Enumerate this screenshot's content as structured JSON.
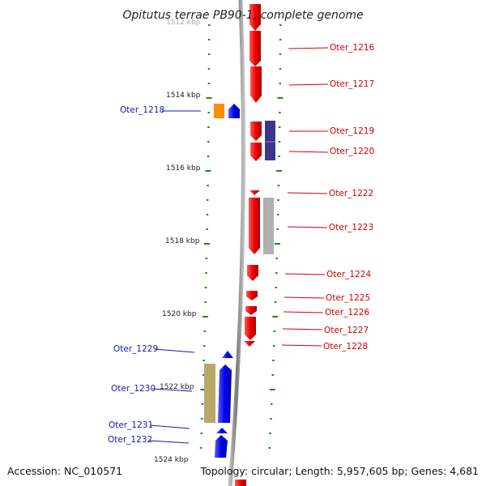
{
  "title": "Opitutus terrae PB90-1, complete genome",
  "footer": {
    "accession": "Accession: NC_010571",
    "topology": "Topology: circular; Length: 5,957,605 bp; Genes: 4,681"
  },
  "scale_labels": [
    "1512 kbp",
    "1514 kbp",
    "1516 kbp",
    "1518 kbp",
    "1520 kbp",
    "1522 kbp",
    "1524 kbp"
  ],
  "genes_forward": [
    {
      "label": "Oter_1218",
      "color": "#0000ee"
    },
    {
      "label": "Oter_1229",
      "color": "#0000ee"
    },
    {
      "label": "Oter_1230",
      "color": "#0000ee"
    },
    {
      "label": "Oter_1231",
      "color": "#0000ee"
    },
    {
      "label": "Oter_1232",
      "color": "#0000ee"
    }
  ],
  "genes_reverse": [
    {
      "label": "Oter_1216",
      "color": "#ee0000"
    },
    {
      "label": "Oter_1217",
      "color": "#ee0000"
    },
    {
      "label": "Oter_1219",
      "color": "#ee0000"
    },
    {
      "label": "Oter_1220",
      "color": "#ee0000"
    },
    {
      "label": "Oter_1222",
      "color": "#ee0000"
    },
    {
      "label": "Oter_1223",
      "color": "#ee0000"
    },
    {
      "label": "Oter_1224",
      "color": "#ee0000"
    },
    {
      "label": "Oter_1225",
      "color": "#ee0000"
    },
    {
      "label": "Oter_1226",
      "color": "#ee0000"
    },
    {
      "label": "Oter_1227",
      "color": "#ee0000"
    },
    {
      "label": "Oter_1228",
      "color": "#ee0000"
    }
  ],
  "colors": {
    "backbone": "#8c8c8c",
    "ticks": "#1a8a1a",
    "forward_gene": "#0000ee",
    "reverse_gene": "#ee0000",
    "orange_feature": "#ff8c00",
    "purple_feature": "#3d3490",
    "gray_feature": "#b0b0b0",
    "khaki_feature": "#b8a86a"
  }
}
